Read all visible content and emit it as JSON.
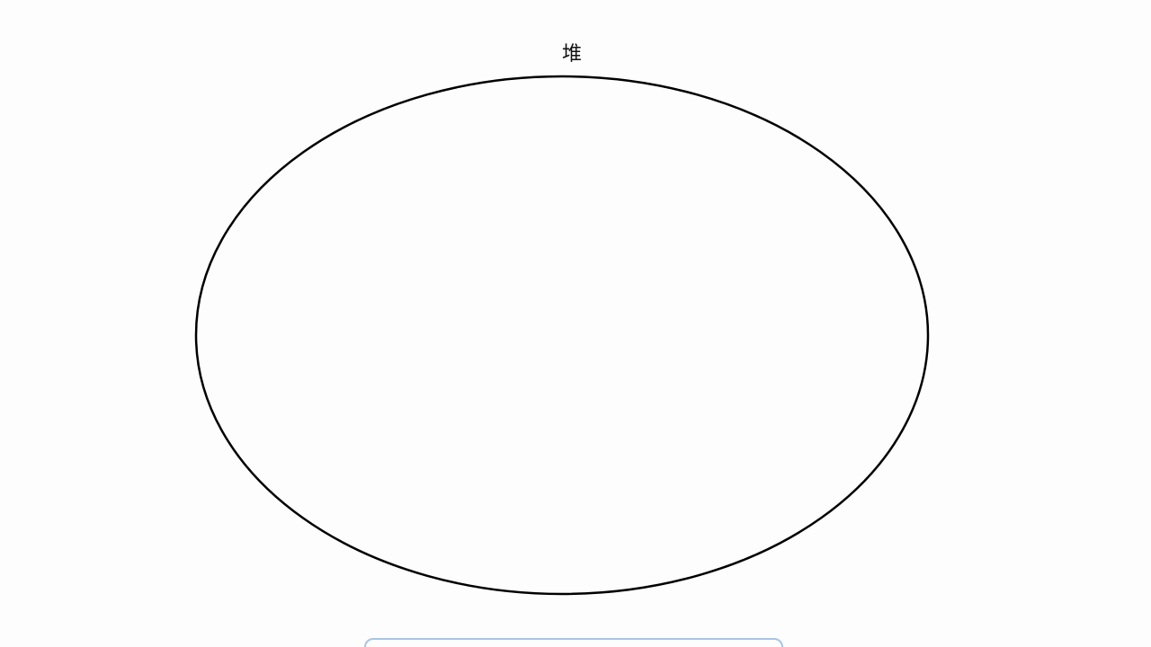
{
  "diagram": {
    "label": "堆",
    "shape": "ellipse",
    "stroke_color": "#000000",
    "fill_color": "#fdfdfd"
  },
  "bottom_panel": {
    "border_color": "#a9c4e6"
  }
}
